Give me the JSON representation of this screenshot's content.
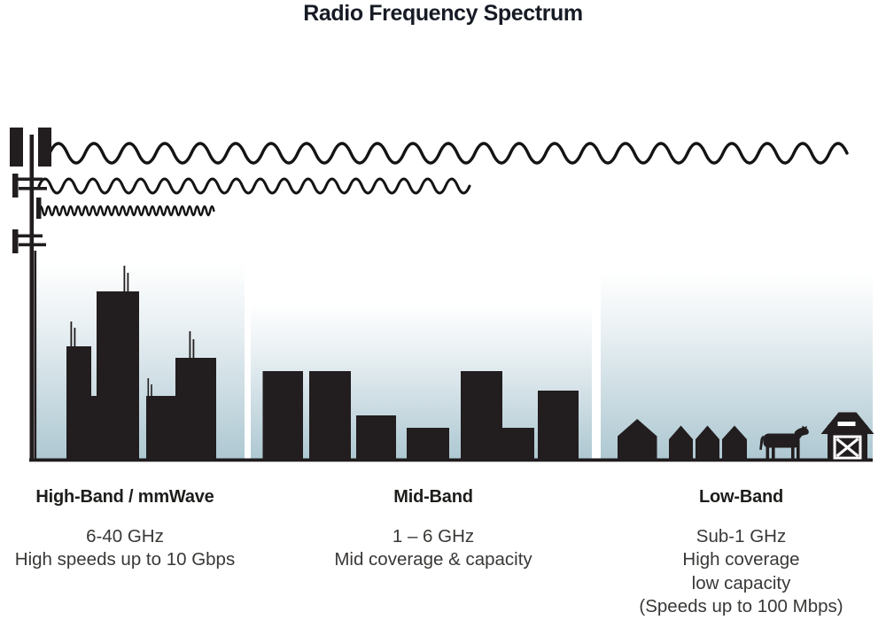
{
  "title": "Radio Frequency Spectrum",
  "bands": [
    {
      "name": "High-Band / mmWave",
      "lines": [
        "6-40 GHz",
        "High speeds up to 10 Gbps"
      ]
    },
    {
      "name": "Mid-Band",
      "lines": [
        "1 – 6 GHz",
        "Mid coverage & capacity"
      ]
    },
    {
      "name": "Low-Band",
      "lines": [
        "Sub-1 GHz",
        "High coverage",
        "low capacity",
        "(Speeds up to 100 Mbps)"
      ]
    }
  ],
  "icons": {
    "transmitter": "cell-tower-icon",
    "waves": [
      "long-wavelength-icon",
      "medium-wavelength-icon",
      "short-wavelength-icon"
    ],
    "scenes": [
      "city-skyline-icon",
      "midrise-buildings-icon",
      "houses-icon",
      "cow-icon",
      "barn-icon"
    ]
  },
  "colors": {
    "silhouette": "#221d1e",
    "wave": "#141414",
    "sky_top": "#ffffff",
    "sky_mid": "#e9f0f3",
    "sky_bottom": "#aec8d2",
    "ground": "#1f1b1c",
    "title_color": "#171b25",
    "heading_color": "#1e1d1b",
    "body_color": "#3a3836",
    "detail": "#ffffff"
  }
}
